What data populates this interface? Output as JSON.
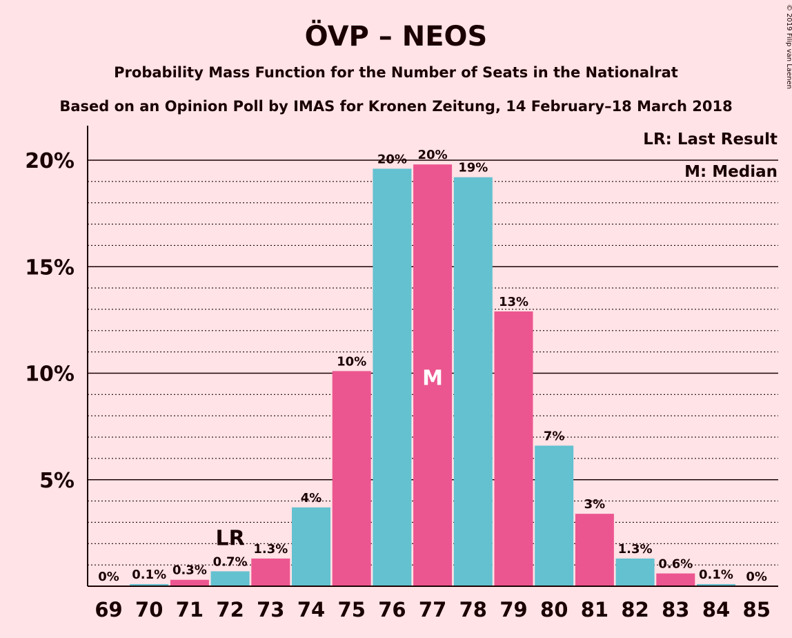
{
  "title": "ÖVP – NEOS",
  "subtitle": "Probability Mass Function for the Number of Seats in the Nationalrat",
  "subtitle2": "Based on an Opinion Poll by IMAS for Kronen Zeitung, 14 February–18 March 2018",
  "copyright": "© 2019 Filip van Laenen",
  "legend": {
    "lr": "LR: Last Result",
    "median": "M: Median"
  },
  "markers": {
    "lr_text": "LR",
    "median_text": "M"
  },
  "colors": {
    "background": "#FFE3E6",
    "bar_a": "#EC5690",
    "bar_b": "#63C1D0"
  },
  "chart_data": {
    "type": "bar",
    "categories": [
      "69",
      "70",
      "71",
      "72",
      "73",
      "74",
      "75",
      "76",
      "77",
      "78",
      "79",
      "80",
      "81",
      "82",
      "83",
      "84",
      "85"
    ],
    "values": [
      0,
      0.1,
      0.3,
      0.7,
      1.3,
      3.7,
      10.1,
      19.6,
      19.8,
      19.2,
      12.9,
      6.6,
      3.4,
      1.3,
      0.6,
      0.1,
      0
    ],
    "data_labels": [
      "0%",
      "0.1%",
      "0.3%",
      "0.7%",
      "1.3%",
      "4%",
      "10%",
      "20%",
      "20%",
      "19%",
      "13%",
      "7%",
      "3%",
      "1.3%",
      "0.6%",
      "0.1%",
      "0%"
    ],
    "yticks": [
      5,
      10,
      15,
      20
    ],
    "ytick_labels": [
      "5%",
      "10%",
      "15%",
      "20%"
    ],
    "ylim": [
      0,
      21.5
    ],
    "last_result_seat": "72",
    "median_seat": "77"
  }
}
